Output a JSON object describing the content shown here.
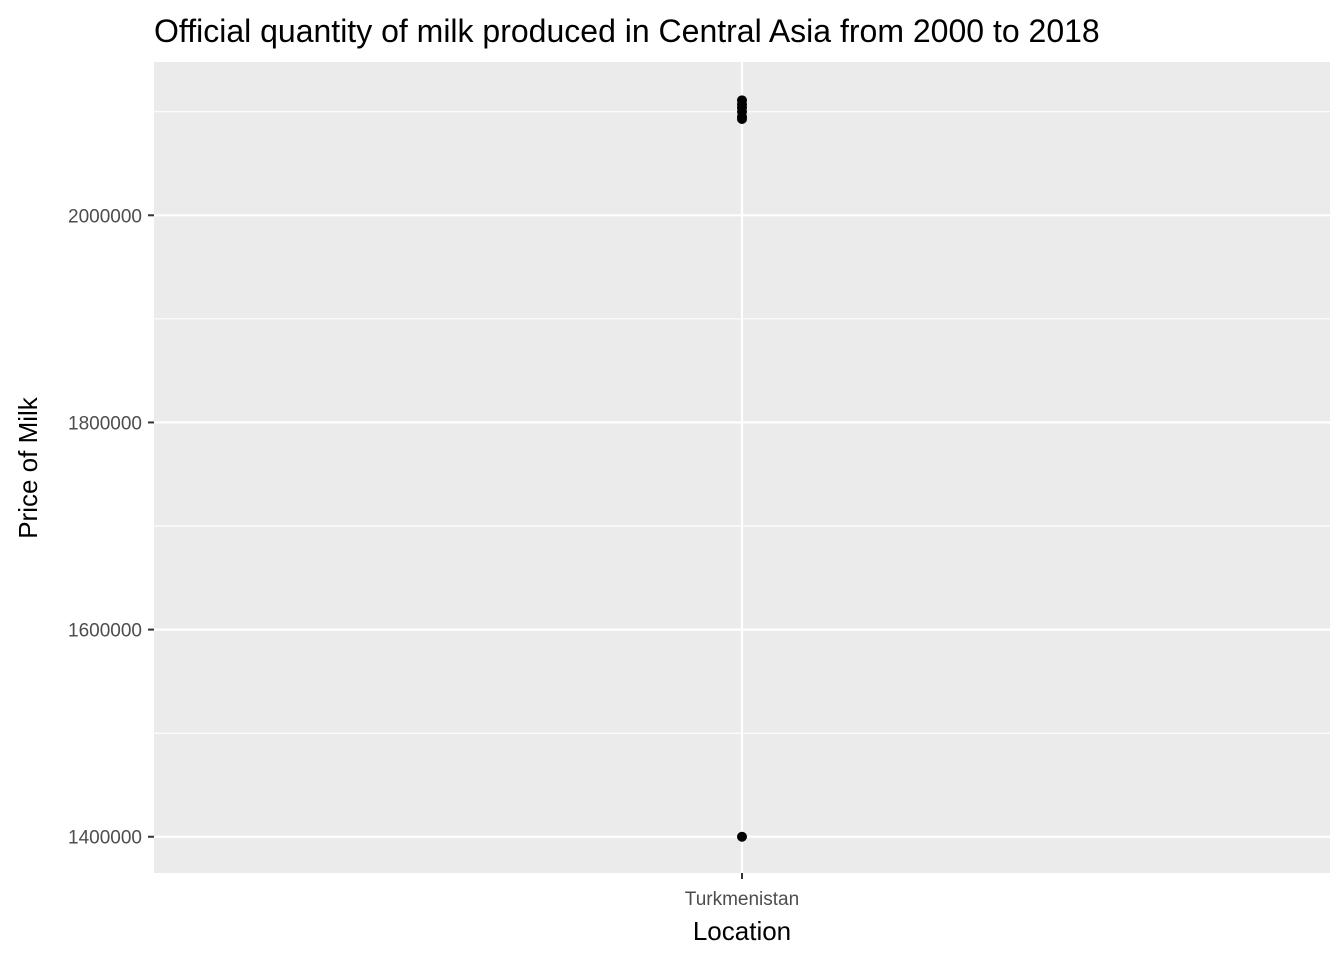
{
  "chart_data": {
    "type": "scatter",
    "title": "Official quantity of milk produced in Central Asia from 2000 to 2018",
    "xlabel": "Location",
    "ylabel": "Price of Milk",
    "categories": [
      "Turkmenistan"
    ],
    "y_ticks": [
      "1400000",
      "1600000",
      "1800000",
      "2000000"
    ],
    "ylim": [
      1365000,
      2148000
    ],
    "grid": true,
    "series": [
      {
        "points": [
          {
            "x": "Turkmenistan",
            "y": 1400000
          },
          {
            "x": "Turkmenistan",
            "y": 2093000
          },
          {
            "x": "Turkmenistan",
            "y": 2095000
          },
          {
            "x": "Turkmenistan",
            "y": 2100000
          },
          {
            "x": "Turkmenistan",
            "y": 2104000
          },
          {
            "x": "Turkmenistan",
            "y": 2107000
          },
          {
            "x": "Turkmenistan",
            "y": 2111000
          }
        ]
      }
    ],
    "colors": {
      "panel_background": "#ebebeb",
      "grid": "#ffffff",
      "point": "#000000",
      "tick_text": "#4d4d4d",
      "tick_mark": "#333333"
    }
  }
}
